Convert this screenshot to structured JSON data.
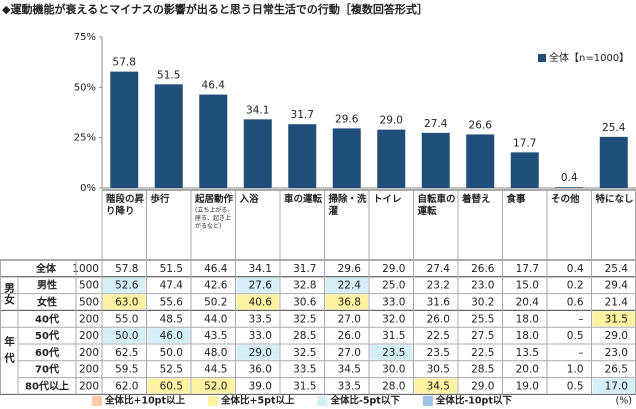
{
  "chart_data": {
    "type": "bar",
    "title": "◆運動機能が衰えるとマイナスの影響が出ると思う日常生活での行動［複数回答形式］",
    "categories": [
      "階段の昇り降り",
      "歩行",
      "起居動作",
      "入浴",
      "車の運転",
      "掃除・洗濯",
      "トイレ",
      "自転車の運転",
      "着替え",
      "食事",
      "その他",
      "特になし"
    ],
    "category_notes": [
      null,
      null,
      "(立ち上がる、座る、起き上がるなど)",
      null,
      null,
      null,
      null,
      null,
      null,
      null,
      null,
      null
    ],
    "series": [
      {
        "name": "全体【n=1000】",
        "color": "#1f4e79",
        "values": [
          57.8,
          51.5,
          46.4,
          34.1,
          31.7,
          29.6,
          29.0,
          27.4,
          26.6,
          17.7,
          0.4,
          25.4
        ]
      }
    ],
    "ylim": [
      0,
      75
    ],
    "yticks": [
      {
        "value": 0,
        "label": "0%"
      },
      {
        "value": 25,
        "label": "25%"
      },
      {
        "value": 50,
        "label": "50%"
      },
      {
        "value": 75,
        "label": "75%"
      }
    ],
    "grid": false,
    "legend_position": "upper right",
    "table": {
      "total": {
        "label": "全体",
        "n": "1000",
        "cells": [
          "57.8",
          "51.5",
          "46.4",
          "34.1",
          "31.7",
          "29.6",
          "29.0",
          "27.4",
          "26.6",
          "17.7",
          "0.4",
          "25.4"
        ],
        "highlight": [
          null,
          null,
          null,
          null,
          null,
          null,
          null,
          null,
          null,
          null,
          null,
          null
        ]
      },
      "groups": [
        {
          "label": "男女",
          "rows": [
            {
              "label": "男性",
              "n": "500",
              "cells": [
                "52.6",
                "47.4",
                "42.6",
                "27.6",
                "32.8",
                "22.4",
                "25.0",
                "23.2",
                "23.0",
                "15.0",
                "0.2",
                "29.4"
              ],
              "highlight": [
                2,
                null,
                null,
                2,
                null,
                2,
                null,
                null,
                null,
                null,
                null,
                null
              ]
            },
            {
              "label": "女性",
              "n": "500",
              "cells": [
                "63.0",
                "55.6",
                "50.2",
                "40.6",
                "30.6",
                "36.8",
                "33.0",
                "31.6",
                "30.2",
                "20.4",
                "0.6",
                "21.4"
              ],
              "highlight": [
                1,
                null,
                null,
                1,
                null,
                1,
                null,
                null,
                null,
                null,
                null,
                null
              ]
            }
          ]
        },
        {
          "label": "年代",
          "rows": [
            {
              "label": "40代",
              "n": "200",
              "cells": [
                "55.0",
                "48.5",
                "44.0",
                "33.5",
                "32.5",
                "27.0",
                "32.0",
                "26.0",
                "25.5",
                "18.0",
                "–",
                "31.5"
              ],
              "highlight": [
                null,
                null,
                null,
                null,
                null,
                null,
                null,
                null,
                null,
                null,
                null,
                1
              ]
            },
            {
              "label": "50代",
              "n": "200",
              "cells": [
                "50.0",
                "46.0",
                "43.5",
                "33.0",
                "28.5",
                "26.0",
                "31.5",
                "22.5",
                "27.5",
                "18.0",
                "0.5",
                "29.0"
              ],
              "highlight": [
                2,
                2,
                null,
                null,
                null,
                null,
                null,
                null,
                null,
                null,
                null,
                null
              ]
            },
            {
              "label": "60代",
              "n": "200",
              "cells": [
                "62.5",
                "50.0",
                "48.0",
                "29.0",
                "32.5",
                "27.0",
                "23.5",
                "23.5",
                "22.5",
                "13.5",
                "–",
                "23.0"
              ],
              "highlight": [
                null,
                null,
                null,
                2,
                null,
                null,
                2,
                null,
                null,
                null,
                null,
                null
              ]
            },
            {
              "label": "70代",
              "n": "200",
              "cells": [
                "59.5",
                "52.5",
                "44.5",
                "36.0",
                "33.5",
                "34.5",
                "30.0",
                "30.5",
                "28.5",
                "20.0",
                "1.0",
                "26.5"
              ],
              "highlight": [
                null,
                null,
                null,
                null,
                null,
                null,
                null,
                null,
                null,
                null,
                null,
                null
              ]
            },
            {
              "label": "80代以上",
              "n": "200",
              "cells": [
                "62.0",
                "60.5",
                "52.0",
                "39.0",
                "31.5",
                "33.5",
                "28.0",
                "34.5",
                "29.0",
                "19.0",
                "0.5",
                "17.0"
              ],
              "highlight": [
                null,
                1,
                1,
                null,
                null,
                null,
                null,
                1,
                null,
                null,
                null,
                2
              ]
            }
          ]
        }
      ],
      "legend": [
        {
          "label": "全体比+10pt以上",
          "color": "#f8cbad"
        },
        {
          "label": "全体比+5pt以上",
          "color": "#fff2a0"
        },
        {
          "label": "全体比-5pt以下",
          "color": "#d4eff8"
        },
        {
          "label": "全体比-10pt以下",
          "color": "#9dc3e6"
        }
      ],
      "unit": "(%)"
    }
  }
}
